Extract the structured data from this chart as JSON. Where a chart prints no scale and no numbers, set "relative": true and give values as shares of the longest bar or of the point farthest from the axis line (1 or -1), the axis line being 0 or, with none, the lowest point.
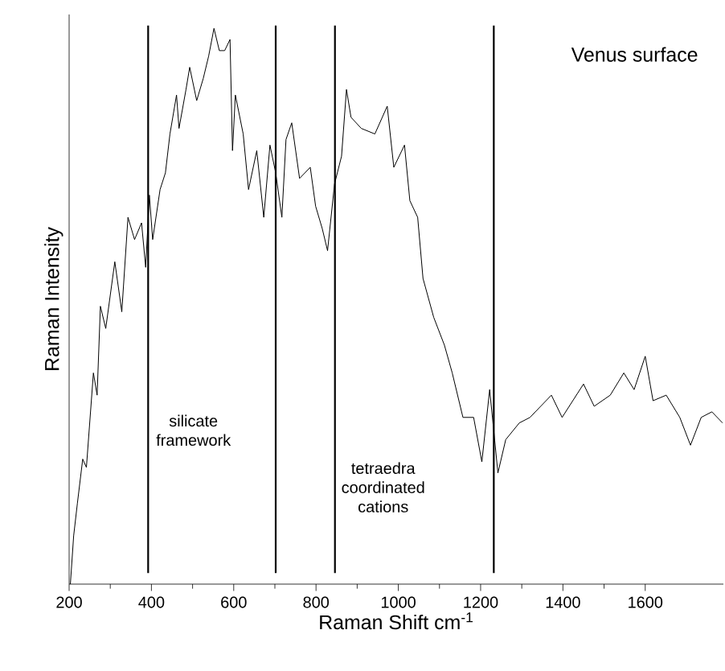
{
  "chart_data": {
    "type": "line",
    "relative": true,
    "xlabel": "Raman Shift cm$^{-1}$",
    "ylabel": "Raman Intensity",
    "annotations": [
      "Venus surface",
      "silicate framework",
      "tetraedra coordinated cations"
    ],
    "xlim": [
      200,
      1790
    ],
    "xticks": [
      200,
      400,
      600,
      800,
      1000,
      1200,
      1400,
      1600
    ],
    "color": "#000000",
    "marker": "none",
    "line_style": "solid",
    "ref_lines": [
      {
        "axis": "x",
        "value": 392,
        "color": "#000000"
      },
      {
        "axis": "x",
        "value": 702,
        "color": "#000000"
      },
      {
        "axis": "x",
        "value": 846,
        "color": "#000000"
      },
      {
        "axis": "x",
        "value": 1232,
        "color": "#000000"
      }
    ],
    "x": [
      203,
      211,
      220,
      233,
      242,
      259,
      268,
      276,
      289,
      311,
      328,
      343,
      359,
      376,
      386,
      395,
      403,
      421,
      434,
      445,
      461,
      467,
      484,
      493,
      510,
      526,
      539,
      552,
      565,
      578,
      591,
      597,
      604,
      623,
      636,
      656,
      673,
      688,
      702,
      717,
      727,
      741,
      760,
      786,
      799,
      815,
      828,
      845,
      862,
      874,
      885,
      910,
      943,
      973,
      989,
      1015,
      1028,
      1047,
      1060,
      1086,
      1112,
      1131,
      1157,
      1183,
      1203,
      1222,
      1242,
      1261,
      1294,
      1320,
      1346,
      1372,
      1398,
      1424,
      1450,
      1476,
      1515,
      1548,
      1573,
      1600,
      1619,
      1651,
      1684,
      1710,
      1736,
      1762,
      1788
    ],
    "values": [
      0,
      0.087,
      0.145,
      0.225,
      0.21,
      0.38,
      0.34,
      0.5,
      0.46,
      0.58,
      0.49,
      0.66,
      0.62,
      0.65,
      0.57,
      0.7,
      0.62,
      0.71,
      0.74,
      0.81,
      0.88,
      0.82,
      0.89,
      0.93,
      0.87,
      0.91,
      0.95,
      1,
      0.96,
      0.96,
      0.98,
      0.78,
      0.88,
      0.81,
      0.71,
      0.78,
      0.66,
      0.79,
      0.74,
      0.66,
      0.8,
      0.83,
      0.73,
      0.75,
      0.68,
      0.64,
      0.6,
      0.72,
      0.77,
      0.89,
      0.84,
      0.82,
      0.81,
      0.86,
      0.75,
      0.79,
      0.69,
      0.66,
      0.55,
      0.48,
      0.43,
      0.38,
      0.3,
      0.3,
      0.22,
      0.35,
      0.2,
      0.26,
      0.29,
      0.3,
      0.32,
      0.34,
      0.3,
      0.33,
      0.36,
      0.32,
      0.34,
      0.38,
      0.35,
      0.41,
      0.33,
      0.34,
      0.3,
      0.25,
      0.3,
      0.31,
      0.29
    ]
  }
}
